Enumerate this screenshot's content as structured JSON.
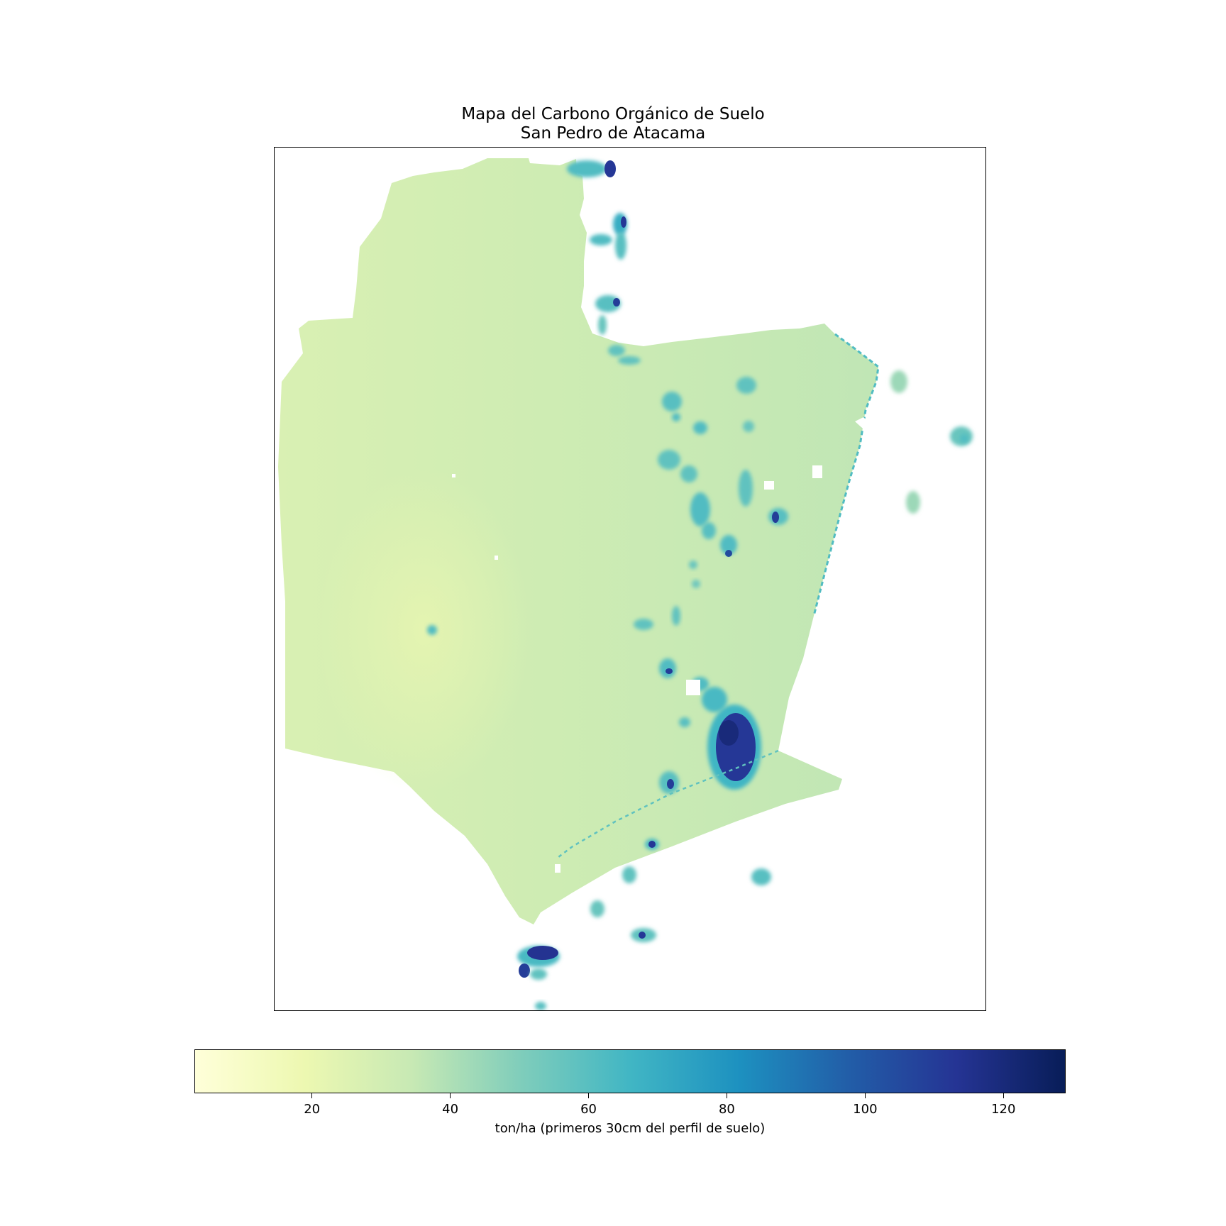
{
  "title": {
    "line1": "Mapa del Carbono Orgánico de Suelo",
    "line2": "San Pedro de Atacama"
  },
  "map": {
    "type": "raster-choropleth",
    "subject": "soil organic carbon stock",
    "colormap": "YlGnBu",
    "base_value_west": 27,
    "base_value_east": 36,
    "high_carbon_areas": [
      {
        "zone": "north rim",
        "max_value": 110
      },
      {
        "zone": "central salar",
        "max_value": 120
      },
      {
        "zone": "south",
        "max_value": 115
      }
    ]
  },
  "colorbar": {
    "label": "ton/ha (primeros 30cm del perfil de suelo)",
    "min": 3,
    "max": 129,
    "ticks": [
      "20",
      "40",
      "60",
      "80",
      "100",
      "120"
    ],
    "tick_values": [
      20,
      40,
      60,
      80,
      100,
      120
    ],
    "colors": [
      "#ffffd9",
      "#edf8b1",
      "#c7e9b4",
      "#7fcdbb",
      "#41b6c4",
      "#1d91c0",
      "#225ea8",
      "#253494",
      "#081d58"
    ]
  }
}
